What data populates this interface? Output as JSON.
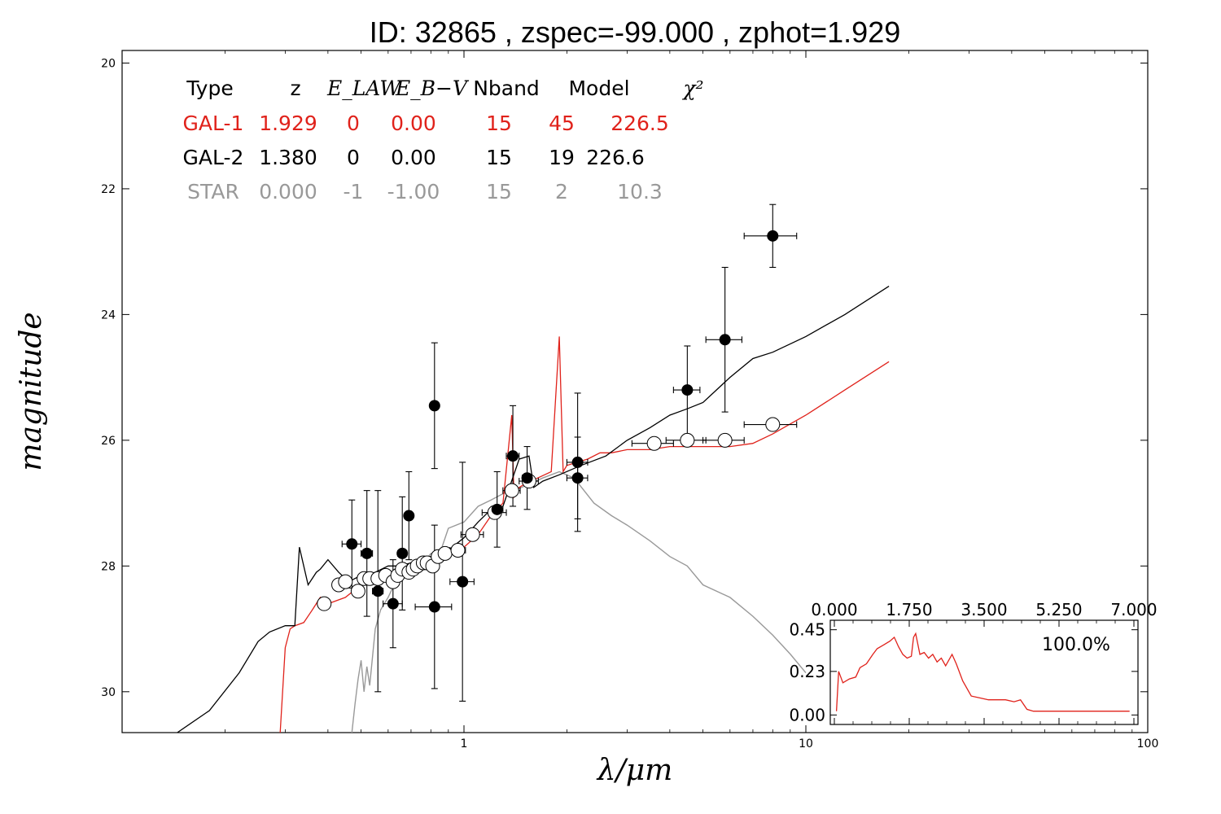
{
  "chart_data": {
    "type": "scatter",
    "title": "ID:  32865 , zspec=-99.000 , zphot=1.929",
    "xlabel": "λ/μm",
    "ylabel": "magnitude",
    "xscale": "log",
    "xlim": [
      0.1,
      100
    ],
    "ylim": [
      30.65,
      19.8
    ],
    "y_inverted": true,
    "x_ticks": [
      1,
      10,
      100
    ],
    "x_tick_labels": [
      "1",
      "10",
      "100"
    ],
    "y_ticks": [
      20,
      22,
      24,
      26,
      28,
      30
    ],
    "y_tick_labels": [
      "20",
      "22",
      "24",
      "26",
      "28",
      "30"
    ],
    "grid": false,
    "colors": {
      "gal1": "#e0221b",
      "gal2": "#000000",
      "star": "#999999"
    },
    "table": {
      "headers": [
        "Type",
        "z",
        "E_LAW",
        "E_B−V",
        "Nband",
        "Model",
        "χ²"
      ],
      "rows": [
        {
          "type": "GAL-1",
          "z": "1.929",
          "elaw": "0",
          "ebv": "0.00",
          "nband": "15",
          "model": "45",
          "chi2": "226.5",
          "color": "#e0221b"
        },
        {
          "type": "GAL-2",
          "z": "1.380",
          "elaw": "0",
          "ebv": "0.00",
          "nband": "15",
          "model": "19",
          "chi2": "226.6",
          "color": "#000000"
        },
        {
          "type": "STAR",
          "z": "0.000",
          "elaw": "-1",
          "ebv": "-1.00",
          "nband": "15",
          "model": "2",
          "chi2": "10.3",
          "color": "#999999"
        }
      ]
    },
    "observed_points": [
      {
        "x": 0.47,
        "y": 27.65,
        "yerr": 0.7,
        "xerr": 0.03
      },
      {
        "x": 0.52,
        "y": 27.8,
        "yerr": 1.0,
        "xerr": 0.02
      },
      {
        "x": 0.56,
        "y": 28.4,
        "yerr": 1.6,
        "xerr": 0.02
      },
      {
        "x": 0.62,
        "y": 28.6,
        "yerr": 0.7,
        "xerr": 0.04
      },
      {
        "x": 0.66,
        "y": 27.8,
        "yerr": 0.9,
        "xerr": 0.02
      },
      {
        "x": 0.69,
        "y": 27.2,
        "yerr": 0.7,
        "xerr": 0.02
      },
      {
        "x": 0.82,
        "y": 25.45,
        "yerr": 1.0,
        "xerr": 0.0
      },
      {
        "x": 0.82,
        "y": 28.65,
        "yerr": 1.3,
        "xerr": 0.1
      },
      {
        "x": 0.99,
        "y": 28.25,
        "yerr": 1.9,
        "xerr": 0.08
      },
      {
        "x": 1.25,
        "y": 27.1,
        "yerr": 0.6,
        "xerr": 0.05
      },
      {
        "x": 1.39,
        "y": 26.25,
        "yerr": 0.8,
        "xerr": 0.06
      },
      {
        "x": 1.53,
        "y": 26.6,
        "yerr": 0.5,
        "xerr": 0.05
      },
      {
        "x": 2.15,
        "y": 26.35,
        "yerr": 1.1,
        "xerr": 0.15
      },
      {
        "x": 2.15,
        "y": 26.6,
        "yerr": 0.65,
        "xerr": 0.15
      },
      {
        "x": 4.5,
        "y": 25.2,
        "yerr": 0.7,
        "xerr": 0.4
      },
      {
        "x": 5.8,
        "y": 24.4,
        "yerr": 1.15,
        "xerr": 0.7
      },
      {
        "x": 8.0,
        "y": 22.75,
        "yerr": 0.5,
        "xerr": 1.4
      }
    ],
    "model_points": [
      {
        "x": 0.39,
        "y": 28.6
      },
      {
        "x": 0.43,
        "y": 28.3
      },
      {
        "x": 0.45,
        "y": 28.25
      },
      {
        "x": 0.49,
        "y": 28.4
      },
      {
        "x": 0.51,
        "y": 28.2
      },
      {
        "x": 0.53,
        "y": 28.2
      },
      {
        "x": 0.56,
        "y": 28.2
      },
      {
        "x": 0.59,
        "y": 28.15
      },
      {
        "x": 0.62,
        "y": 28.25
      },
      {
        "x": 0.64,
        "y": 28.15
      },
      {
        "x": 0.66,
        "y": 28.05
      },
      {
        "x": 0.69,
        "y": 28.1
      },
      {
        "x": 0.71,
        "y": 28.05
      },
      {
        "x": 0.73,
        "y": 28.0
      },
      {
        "x": 0.76,
        "y": 27.95
      },
      {
        "x": 0.78,
        "y": 27.95
      },
      {
        "x": 0.81,
        "y": 28.0
      },
      {
        "x": 0.84,
        "y": 27.85
      },
      {
        "x": 0.88,
        "y": 27.8
      },
      {
        "x": 0.96,
        "y": 27.75
      },
      {
        "x": 1.06,
        "y": 27.5
      },
      {
        "x": 1.23,
        "y": 27.15
      },
      {
        "x": 1.38,
        "y": 26.8
      },
      {
        "x": 1.55,
        "y": 26.65
      },
      {
        "x": 3.6,
        "y": 26.05
      },
      {
        "x": 4.5,
        "y": 26.0
      },
      {
        "x": 5.8,
        "y": 26.0
      },
      {
        "x": 8.0,
        "y": 25.75
      }
    ],
    "model_points_xerr": [
      0.01,
      0.01,
      0.01,
      0.01,
      0.01,
      0.01,
      0.01,
      0.01,
      0.01,
      0.01,
      0.01,
      0.01,
      0.01,
      0.01,
      0.01,
      0.01,
      0.01,
      0.01,
      0.03,
      0.05,
      0.08,
      0.1,
      0.08,
      0.1,
      0.5,
      0.6,
      0.8,
      1.4
    ],
    "series": [
      {
        "key": "gal2",
        "color": "#000000",
        "x": [
          0.145,
          0.18,
          0.22,
          0.25,
          0.27,
          0.3,
          0.31,
          0.32,
          0.33,
          0.35,
          0.37,
          0.38,
          0.4,
          0.43,
          0.46,
          0.5,
          0.55,
          0.6,
          0.65,
          0.7,
          0.75,
          0.8,
          0.9,
          1.0,
          1.1,
          1.2,
          1.3,
          1.45,
          1.55,
          1.6,
          1.7,
          1.9,
          2.2,
          2.6,
          3.0,
          3.5,
          4.0,
          4.5,
          5.0,
          6.0,
          7.0,
          8.0,
          10.0,
          13.0,
          17.5
        ],
        "y": [
          30.65,
          30.3,
          29.7,
          29.2,
          29.05,
          28.95,
          28.95,
          28.95,
          27.7,
          28.3,
          28.1,
          28.05,
          27.9,
          28.1,
          28.25,
          28.15,
          28.1,
          28.0,
          28.0,
          27.95,
          27.9,
          27.85,
          27.75,
          27.55,
          27.3,
          27.1,
          27.05,
          26.3,
          26.25,
          26.75,
          26.65,
          26.55,
          26.4,
          26.25,
          26.0,
          25.8,
          25.6,
          25.5,
          25.4,
          25.0,
          24.7,
          24.6,
          24.35,
          24.0,
          23.55
        ]
      },
      {
        "key": "gal1",
        "color": "#e0221b",
        "x": [
          0.29,
          0.3,
          0.31,
          0.32,
          0.34,
          0.36,
          0.38,
          0.4,
          0.45,
          0.5,
          0.55,
          0.6,
          0.65,
          0.7,
          0.8,
          0.9,
          1.0,
          1.1,
          1.2,
          1.3,
          1.38,
          1.4,
          1.45,
          1.5,
          1.8,
          1.9,
          1.95,
          2.0,
          2.3,
          2.5,
          2.7,
          3.0,
          3.5,
          4.0,
          5.0,
          6.0,
          7.0,
          8.0,
          10.0,
          13.0,
          17.5
        ],
        "y": [
          30.65,
          29.3,
          29.0,
          28.95,
          28.9,
          28.7,
          28.5,
          28.6,
          28.5,
          28.3,
          28.25,
          28.2,
          28.1,
          28.1,
          28.0,
          27.85,
          27.7,
          27.5,
          27.2,
          27.0,
          25.6,
          26.9,
          26.75,
          26.7,
          26.5,
          24.35,
          26.5,
          26.4,
          26.3,
          26.2,
          26.2,
          26.15,
          26.15,
          26.1,
          26.1,
          26.1,
          26.05,
          25.9,
          25.6,
          25.2,
          24.75
        ]
      },
      {
        "key": "star",
        "color": "#999999",
        "x": [
          0.47,
          0.48,
          0.49,
          0.5,
          0.51,
          0.52,
          0.53,
          0.55,
          0.57,
          0.6,
          0.65,
          0.7,
          0.75,
          0.8,
          0.85,
          0.9,
          1.0,
          1.1,
          1.2,
          1.3,
          1.4,
          1.55,
          1.7,
          1.9,
          2.1,
          2.4,
          2.7,
          3.0,
          3.5,
          4.0,
          4.5,
          5.0,
          6.0,
          7.0,
          8.0,
          9.0,
          10.0
        ],
        "y": [
          30.65,
          30.2,
          29.8,
          29.5,
          30.0,
          29.6,
          29.9,
          29.0,
          28.7,
          28.5,
          28.1,
          28.2,
          28.0,
          27.8,
          27.8,
          27.4,
          27.3,
          27.05,
          26.95,
          26.85,
          26.8,
          26.7,
          26.6,
          26.5,
          26.6,
          27.0,
          27.2,
          27.35,
          27.6,
          27.85,
          28.0,
          28.3,
          28.5,
          28.8,
          29.1,
          29.4,
          29.7
        ]
      }
    ],
    "inset": {
      "type": "line",
      "x_tick_labels": [
        "0.000",
        "1.750",
        "3.500",
        "5.250",
        "7.000"
      ],
      "x_ticks": [
        0,
        1.75,
        3.5,
        5.25,
        7
      ],
      "xlim": [
        0,
        7
      ],
      "y_tick_labels": [
        "0.00",
        "0.23",
        "0.45"
      ],
      "y_ticks": [
        0,
        0.23,
        0.45
      ],
      "ylim": [
        -0.05,
        0.5
      ],
      "annotation": "100.0%",
      "color": "#e0221b",
      "x": [
        0.05,
        0.1,
        0.2,
        0.35,
        0.5,
        0.6,
        0.75,
        0.9,
        1.0,
        1.15,
        1.3,
        1.4,
        1.5,
        1.6,
        1.7,
        1.8,
        1.85,
        1.9,
        2.0,
        2.1,
        2.2,
        2.3,
        2.4,
        2.5,
        2.6,
        2.75,
        2.85,
        3.0,
        3.2,
        3.4,
        3.6,
        3.8,
        4.0,
        4.2,
        4.35,
        4.5,
        4.65,
        5.0,
        5.5,
        6.0,
        6.5,
        6.9
      ],
      "y": [
        0.02,
        0.23,
        0.17,
        0.19,
        0.2,
        0.25,
        0.27,
        0.32,
        0.35,
        0.37,
        0.39,
        0.41,
        0.36,
        0.32,
        0.3,
        0.31,
        0.41,
        0.43,
        0.32,
        0.33,
        0.3,
        0.32,
        0.28,
        0.3,
        0.26,
        0.32,
        0.27,
        0.18,
        0.1,
        0.09,
        0.08,
        0.08,
        0.08,
        0.07,
        0.08,
        0.03,
        0.02,
        0.02,
        0.02,
        0.02,
        0.02,
        0.02
      ]
    }
  }
}
